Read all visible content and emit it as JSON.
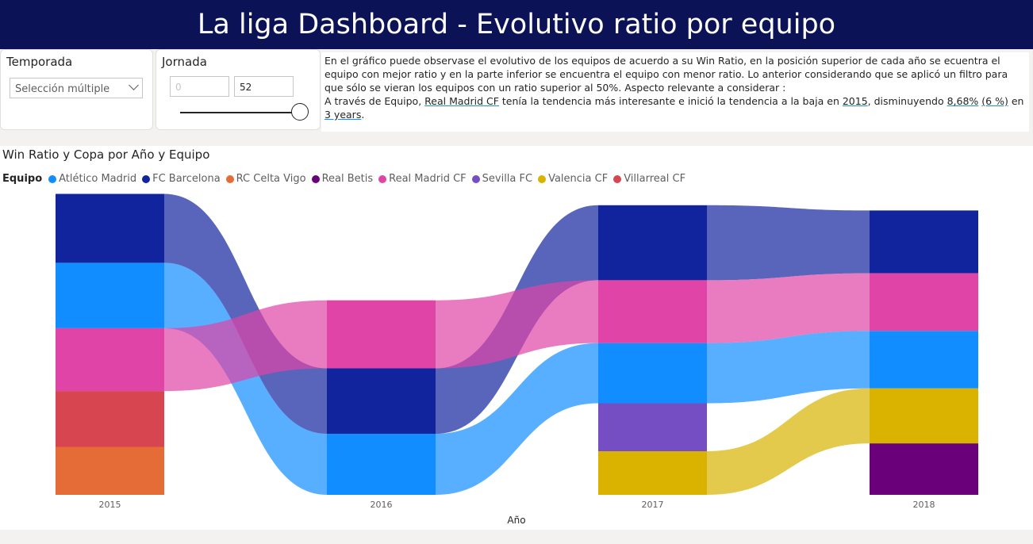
{
  "header": {
    "title": "La liga Dashboard - Evolutivo ratio por equipo"
  },
  "filters": {
    "temporada": {
      "label": "Temporada",
      "value": "Selección múltiple"
    },
    "jornada": {
      "label": "Jornada",
      "min_value": "0",
      "max_value": "52",
      "slider_fraction": 1.0
    }
  },
  "narrative": {
    "line1": "En el gráfico puede observase el evolutivo de los equipos de acuerdo a su Win Ratio, en la posición superior de cada año se ecuentra el equipo con mejor ratio y en la parte inferior se encuentra el equipo con menor ratio. Lo anterior considerando que se aplicó un filtro para que sólo se vieran los equipos con un ratio superior al 50%. Aspecto relevante a considerar :",
    "p2_a": "A través de Equipo, ",
    "p2_team": "Real Madrid CF",
    "p2_b": " tenía la tendencia más interesante e inició la tendencia a la baja en ",
    "p2_year": "2015",
    "p2_c": ", disminuyendo ",
    "p2_pct": "8,68%",
    "p2_d": " ",
    "p2_pct2": "(6 %)",
    "p2_e": " en ",
    "p2_years": "3 years",
    "p2_f": "."
  },
  "chart_data": {
    "type": "ribbon",
    "title": "Win Ratio y Copa por Año y Equipo",
    "legend_title": "Equipo",
    "legend_position": "top-left",
    "xlabel": "Año",
    "categories": [
      "2015",
      "2016",
      "2017",
      "2018"
    ],
    "series": [
      {
        "name": "Atlético Madrid",
        "color": "#118dff",
        "values": [
          0.75,
          0.7,
          0.69,
          0.66
        ]
      },
      {
        "name": "FC Barcelona",
        "color": "#12239e",
        "values": [
          0.79,
          0.75,
          0.86,
          0.72
        ]
      },
      {
        "name": "RC Celta Vigo",
        "color": "#e66c37",
        "values": [
          0.55,
          null,
          null,
          null
        ]
      },
      {
        "name": "Real Betis",
        "color": "#6b007b",
        "values": [
          null,
          null,
          null,
          0.59
        ]
      },
      {
        "name": "Real Madrid CF",
        "color": "#e044a7",
        "values": [
          0.72,
          0.78,
          0.72,
          0.66
        ]
      },
      {
        "name": "Sevilla FC",
        "color": "#744ec2",
        "values": [
          null,
          null,
          0.55,
          null
        ]
      },
      {
        "name": "Valencia CF",
        "color": "#d9b300",
        "values": [
          null,
          null,
          0.5,
          0.63
        ]
      },
      {
        "name": "Villarreal CF",
        "color": "#d64550",
        "values": [
          0.64,
          null,
          null,
          null
        ]
      }
    ]
  }
}
